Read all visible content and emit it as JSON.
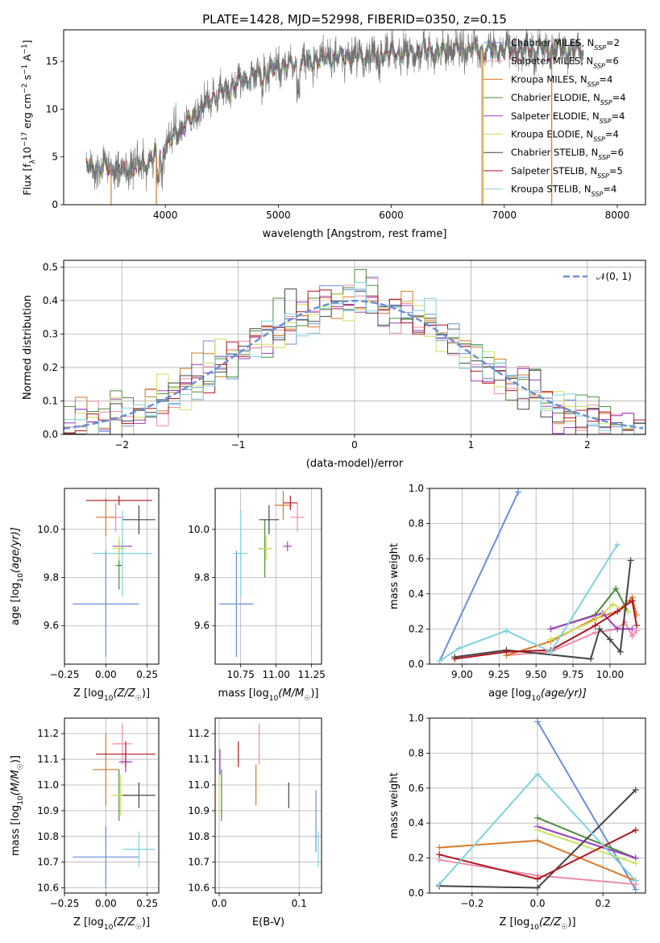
{
  "figure": {
    "title": "PLATE=1428, MJD=52998, FIBERID=0350, z=0.15"
  },
  "colors": {
    "Chabrier MILES": "#6a8fd6",
    "Salpeter MILES": "#f08aa8",
    "Kroupa MILES": "#d97a28",
    "Chabrier ELODIE": "#4c8c3c",
    "Salpeter ELODIE": "#9b3ec0",
    "Kroupa ELODIE": "#cfe05a",
    "Chabrier STELIB": "#444444",
    "Salpeter STELIB": "#b0141e",
    "Kroupa STELIB": "#7fd3de"
  },
  "chart_data": [
    {
      "id": "spectrum",
      "type": "line",
      "xlabel": "wavelength [Angstrom, rest frame]",
      "ylabel": "Flux [f",
      "ylabel_lambda": "λ",
      "ylabel_rest": "10",
      "ylabel_exp": "−17",
      "ylabel_units": " erg cm",
      "ylabel_u1": "−2",
      "ylabel_s": " s",
      "ylabel_u2": "−1",
      "ylabel_a": " A",
      "ylabel_u3": "−1",
      "ylabel_end": "]",
      "xlim": [
        3100,
        8250
      ],
      "ylim": [
        0,
        18.3
      ],
      "xticks": [
        4000,
        5000,
        6000,
        7000,
        8000
      ],
      "yticks": [
        0,
        5,
        10,
        15
      ],
      "legend": [
        {
          "label": "Chabrier MILES, N",
          "sub": "SSP",
          "suffix": "=2",
          "color": "#6a8fd6"
        },
        {
          "label": "Salpeter MILES, N",
          "sub": "SSP",
          "suffix": "=6",
          "color": "#f08aa8"
        },
        {
          "label": "Kroupa MILES, N",
          "sub": "SSP",
          "suffix": "=4",
          "color": "#d97a28"
        },
        {
          "label": "Chabrier ELODIE, N",
          "sub": "SSP",
          "suffix": "=4",
          "color": "#4c8c3c"
        },
        {
          "label": "Salpeter ELODIE, N",
          "sub": "SSP",
          "suffix": "=4",
          "color": "#9b3ec0"
        },
        {
          "label": "Kroupa ELODIE, N",
          "sub": "SSP",
          "suffix": "=4",
          "color": "#cfe05a"
        },
        {
          "label": "Chabrier STELIB, N",
          "sub": "SSP",
          "suffix": "=6",
          "color": "#444444"
        },
        {
          "label": "Salpeter STELIB, N",
          "sub": "SSP",
          "suffix": "=5",
          "color": "#b0141e"
        },
        {
          "label": "Kroupa STELIB, N",
          "sub": "SSP",
          "suffix": "=4",
          "color": "#7fd3de"
        }
      ],
      "continuum_x": [
        3300,
        3450,
        3550,
        3650,
        3750,
        3850,
        3950,
        4050,
        4200,
        4400,
        4600,
        4800,
        5000,
        5200,
        5400,
        5700,
        6000,
        6300,
        6600,
        6900,
        7200,
        7500,
        7700
      ],
      "continuum_y": [
        3.9,
        3.9,
        3.7,
        3.5,
        4.0,
        4.5,
        5.3,
        6.8,
        8.7,
        11.0,
        12.6,
        13.6,
        14.3,
        14.8,
        15.3,
        15.6,
        15.8,
        16.0,
        16.2,
        16.2,
        16.3,
        16.2,
        16.0
      ],
      "drop_lines": [
        {
          "x": 3520,
          "color": "#d97a28"
        },
        {
          "x": 3920,
          "color": "#d97a28"
        },
        {
          "x": 6800,
          "color": "#cfe05a"
        },
        {
          "x": 6810,
          "color": "#d97a28"
        },
        {
          "x": 7420,
          "color": "#d97a28"
        }
      ]
    },
    {
      "id": "residuals",
      "type": "bar",
      "xlabel": "(data-model)/error",
      "ylabel": "Normed distribution",
      "xlim": [
        -2.5,
        2.5
      ],
      "ylim": [
        0,
        0.52
      ],
      "xticks": [
        -2,
        -1,
        0,
        1,
        2
      ],
      "xtick_labels": [
        "−2",
        "−1",
        "0",
        "1",
        "2"
      ],
      "yticks": [
        0.0,
        0.1,
        0.2,
        0.3,
        0.4,
        0.5
      ],
      "ytick_labels": [
        "0.0",
        "0.1",
        "0.2",
        "0.3",
        "0.4",
        "0.5"
      ],
      "bin_width": 0.1,
      "legend": [
        {
          "label": "𝒩(0, 1)",
          "color": "#6a8fd6",
          "dashed": true
        }
      ],
      "gaussian": {
        "mu": 0,
        "sigma": 1
      }
    },
    {
      "id": "age-Z",
      "type": "scatter",
      "xlabel": "Z [log",
      "xlabel_sub": "10",
      "xlabel_rest": "(Z/Z",
      "xlabel_sun": "☉",
      "xlabel_end": ")]",
      "ylabel": "age  [log",
      "ylabel_sub": "10",
      "ylabel_rest": "(age/yr)]",
      "xlim": [
        -0.25,
        0.32
      ],
      "ylim": [
        9.44,
        10.17
      ],
      "xticks": [
        -0.25,
        0.0,
        0.25
      ],
      "xtick_labels": [
        "−0.25",
        "0.00",
        "0.25"
      ],
      "yticks": [
        9.6,
        9.8,
        10.0
      ],
      "ytick_labels": [
        "9.6",
        "9.8",
        "10.0"
      ],
      "points": [
        {
          "model": "Chabrier MILES",
          "x": 0.0,
          "y": 9.69,
          "xerr": 0.2,
          "yerr": 0.22
        },
        {
          "model": "Salpeter MILES",
          "x": 0.06,
          "y": 10.05,
          "xerr": 0.05,
          "yerr": 0.06
        },
        {
          "model": "Kroupa MILES",
          "x": 0.0,
          "y": 10.05,
          "xerr": 0.06,
          "yerr": 0.08
        },
        {
          "model": "Chabrier ELODIE",
          "x": 0.08,
          "y": 9.85,
          "xerr": 0.02,
          "yerr": 0.1
        },
        {
          "model": "Salpeter ELODIE",
          "x": 0.1,
          "y": 9.93,
          "xerr": 0.06,
          "yerr": 0.02
        },
        {
          "model": "Kroupa ELODIE",
          "x": 0.08,
          "y": 9.92,
          "xerr": 0.04,
          "yerr": 0.05
        },
        {
          "model": "Chabrier STELIB",
          "x": 0.2,
          "y": 10.04,
          "xerr": 0.1,
          "yerr": 0.06
        },
        {
          "model": "Salpeter STELIB",
          "x": 0.08,
          "y": 10.12,
          "xerr": 0.2,
          "yerr": 0.02
        },
        {
          "model": "Kroupa STELIB",
          "x": 0.1,
          "y": 9.9,
          "xerr": 0.18,
          "yerr": 0.18
        }
      ]
    },
    {
      "id": "age-mass",
      "type": "scatter",
      "xlabel": "mass [log",
      "xlabel_sub": "10",
      "xlabel_rest": "(M/M",
      "xlabel_sun": "☉",
      "xlabel_end": ")]",
      "ylabel": "",
      "xlim": [
        10.57,
        11.32
      ],
      "ylim": [
        9.44,
        10.17
      ],
      "xticks": [
        10.75,
        11.0,
        11.25
      ],
      "xtick_labels": [
        "10.75",
        "11.00",
        "11.25"
      ],
      "yticks": [
        9.6,
        9.8,
        10.0
      ],
      "ytick_labels": [
        "9.6",
        "9.8",
        "10.0"
      ],
      "points": [
        {
          "model": "Chabrier MILES",
          "x": 10.72,
          "y": 9.69,
          "xerr": 0.12,
          "yerr": 0.22
        },
        {
          "model": "Salpeter MILES",
          "x": 11.15,
          "y": 10.05,
          "xerr": 0.05,
          "yerr": 0.06
        },
        {
          "model": "Kroupa MILES",
          "x": 11.05,
          "y": 10.1,
          "xerr": 0.06,
          "yerr": 0.06
        },
        {
          "model": "Chabrier ELODIE",
          "x": 10.92,
          "y": 9.92,
          "xerr": 0.04,
          "yerr": 0.12
        },
        {
          "model": "Salpeter ELODIE",
          "x": 11.08,
          "y": 9.93,
          "xerr": 0.03,
          "yerr": 0.02
        },
        {
          "model": "Kroupa ELODIE",
          "x": 10.93,
          "y": 9.92,
          "xerr": 0.04,
          "yerr": 0.05
        },
        {
          "model": "Chabrier STELIB",
          "x": 10.95,
          "y": 10.04,
          "xerr": 0.07,
          "yerr": 0.06
        },
        {
          "model": "Salpeter STELIB",
          "x": 11.1,
          "y": 10.11,
          "xerr": 0.05,
          "yerr": 0.03
        },
        {
          "model": "Kroupa STELIB",
          "x": 10.75,
          "y": 9.9,
          "xerr": 0.05,
          "yerr": 0.18
        }
      ]
    },
    {
      "id": "weight-age",
      "type": "line",
      "xlabel": "age  [log",
      "xlabel_sub": "10",
      "xlabel_rest": "(age/yr)]",
      "ylabel": "mass weight",
      "xlim": [
        8.78,
        10.24
      ],
      "ylim": [
        0,
        1.0
      ],
      "xticks": [
        9.0,
        9.25,
        9.5,
        9.75,
        10.0
      ],
      "xtick_labels": [
        "9.00",
        "9.25",
        "9.50",
        "9.75",
        "10.00"
      ],
      "yticks": [
        0,
        0.2,
        0.4,
        0.6,
        0.8,
        1.0
      ],
      "ytick_labels": [
        "0.0",
        "0.2",
        "0.4",
        "0.6",
        "0.8",
        "1.0"
      ],
      "series": [
        {
          "model": "Chabrier MILES",
          "x": [
            8.85,
            9.38
          ],
          "y": [
            0.02,
            0.98
          ]
        },
        {
          "model": "Salpeter MILES",
          "x": [
            9.3,
            9.6,
            9.9,
            10.05,
            10.1,
            10.15,
            10.18
          ],
          "y": [
            0.05,
            0.07,
            0.18,
            0.2,
            0.24,
            0.16,
            0.19
          ]
        },
        {
          "model": "Kroupa MILES",
          "x": [
            9.3,
            9.6,
            9.9,
            10.05,
            10.15,
            10.18
          ],
          "y": [
            0.05,
            0.13,
            0.26,
            0.3,
            0.38,
            0.28
          ]
        },
        {
          "model": "Chabrier ELODIE",
          "x": [
            9.6,
            9.9,
            10.04,
            10.12
          ],
          "y": [
            0.2,
            0.28,
            0.43,
            0.3
          ]
        },
        {
          "model": "Salpeter ELODIE",
          "x": [
            9.6,
            9.95,
            10.05,
            10.15
          ],
          "y": [
            0.2,
            0.29,
            0.2,
            0.2
          ]
        },
        {
          "model": "Kroupa ELODIE",
          "x": [
            9.6,
            9.9,
            10.02,
            10.12
          ],
          "y": [
            0.14,
            0.25,
            0.34,
            0.3
          ]
        },
        {
          "model": "Chabrier STELIB",
          "x": [
            8.95,
            9.3,
            9.87,
            9.93,
            10.0,
            10.07,
            10.14
          ],
          "y": [
            0.04,
            0.08,
            0.03,
            0.2,
            0.14,
            0.07,
            0.59
          ]
        },
        {
          "model": "Salpeter STELIB",
          "x": [
            8.95,
            9.3,
            9.6,
            9.9,
            10.05,
            10.15,
            10.18
          ],
          "y": [
            0.03,
            0.07,
            0.08,
            0.22,
            0.3,
            0.36,
            0.22
          ]
        },
        {
          "model": "Kroupa STELIB",
          "x": [
            8.85,
            8.98,
            9.3,
            9.6,
            10.05
          ],
          "y": [
            0.02,
            0.09,
            0.19,
            0.07,
            0.68
          ]
        }
      ]
    },
    {
      "id": "mass-Z",
      "type": "scatter",
      "xlabel": "Z [log",
      "xlabel_sub": "10",
      "xlabel_rest": "(Z/Z",
      "xlabel_sun": "☉",
      "xlabel_end": ")]",
      "ylabel": "mass [log",
      "ylabel_sub": "10",
      "ylabel_rest": "(M/M",
      "ylabel_sun": "☉",
      "ylabel_end": ")]",
      "xlim": [
        -0.25,
        0.32
      ],
      "ylim": [
        10.58,
        11.26
      ],
      "xticks": [
        -0.25,
        0.0,
        0.25
      ],
      "xtick_labels": [
        "−0.25",
        "0.00",
        "0.25"
      ],
      "yticks": [
        10.6,
        10.7,
        10.8,
        10.9,
        11.0,
        11.1,
        11.2
      ],
      "ytick_labels": [
        "10.6",
        "10.7",
        "10.8",
        "10.9",
        "11.0",
        "11.1",
        "11.2"
      ],
      "points": [
        {
          "model": "Chabrier MILES",
          "x": 0.0,
          "y": 10.72,
          "xerr": 0.2,
          "yerr": 0.12
        },
        {
          "model": "Salpeter MILES",
          "x": 0.1,
          "y": 11.16,
          "xerr": 0.06,
          "yerr": 0.08
        },
        {
          "model": "Kroupa MILES",
          "x": 0.0,
          "y": 11.06,
          "xerr": 0.08,
          "yerr": 0.14
        },
        {
          "model": "Chabrier ELODIE",
          "x": 0.08,
          "y": 10.96,
          "xerr": 0.02,
          "yerr": 0.1
        },
        {
          "model": "Salpeter ELODIE",
          "x": 0.12,
          "y": 11.09,
          "xerr": 0.04,
          "yerr": 0.04
        },
        {
          "model": "Kroupa ELODIE",
          "x": 0.09,
          "y": 10.96,
          "xerr": 0.06,
          "yerr": 0.08
        },
        {
          "model": "Chabrier STELIB",
          "x": 0.2,
          "y": 10.96,
          "xerr": 0.1,
          "yerr": 0.05
        },
        {
          "model": "Salpeter STELIB",
          "x": 0.12,
          "y": 11.12,
          "xerr": 0.18,
          "yerr": 0.05
        },
        {
          "model": "Kroupa STELIB",
          "x": 0.2,
          "y": 10.75,
          "xerr": 0.1,
          "yerr": 0.07
        }
      ]
    },
    {
      "id": "mass-EBV",
      "type": "scatter",
      "xlabel": "E(B-V)",
      "ylabel": "",
      "xlim": [
        -0.005,
        0.128
      ],
      "ylim": [
        10.58,
        11.26
      ],
      "xticks": [
        0.0,
        0.1
      ],
      "xtick_labels": [
        "0.0",
        "0.1"
      ],
      "yticks": [
        10.6,
        10.7,
        10.8,
        10.9,
        11.0,
        11.1,
        11.2
      ],
      "ytick_labels": [
        "10.6",
        "10.7",
        "10.8",
        "10.9",
        "11.0",
        "11.1",
        "11.2"
      ],
      "points": [
        {
          "model": "Chabrier MILES",
          "x": 0.121,
          "y": 10.86,
          "xerr": 0,
          "yerr": 0.12
        },
        {
          "model": "Salpeter MILES",
          "x": 0.05,
          "y": 11.16,
          "xerr": 0,
          "yerr": 0.08
        },
        {
          "model": "Kroupa MILES",
          "x": 0.046,
          "y": 11.0,
          "xerr": 0,
          "yerr": 0.08
        },
        {
          "model": "Chabrier ELODIE",
          "x": 0.003,
          "y": 10.96,
          "xerr": 0,
          "yerr": 0.1
        },
        {
          "model": "Salpeter ELODIE",
          "x": 0.001,
          "y": 11.09,
          "xerr": 0,
          "yerr": 0.05
        },
        {
          "model": "Kroupa ELODIE",
          "x": 0.0,
          "y": 10.96,
          "xerr": 0,
          "yerr": 0.08
        },
        {
          "model": "Chabrier STELIB",
          "x": 0.087,
          "y": 10.96,
          "xerr": 0,
          "yerr": 0.05
        },
        {
          "model": "Salpeter STELIB",
          "x": 0.024,
          "y": 11.12,
          "xerr": 0,
          "yerr": 0.05
        },
        {
          "model": "Kroupa STELIB",
          "x": 0.124,
          "y": 10.75,
          "xerr": 0,
          "yerr": 0.07
        }
      ]
    },
    {
      "id": "weight-Z",
      "type": "line",
      "xlabel": "Z [log",
      "xlabel_sub": "10",
      "xlabel_rest": "(Z/Z",
      "xlabel_sun": "☉",
      "xlabel_end": ")]",
      "ylabel": "mass weight",
      "xlim": [
        -0.33,
        0.33
      ],
      "ylim": [
        0,
        1.0
      ],
      "xticks": [
        -0.2,
        0.0,
        0.2
      ],
      "xtick_labels": [
        "−0.2",
        "0.0",
        "0.2"
      ],
      "yticks": [
        0,
        0.2,
        0.4,
        0.6,
        0.8,
        1.0
      ],
      "ytick_labels": [
        "0.0",
        "0.2",
        "0.4",
        "0.6",
        "0.8",
        "1.0"
      ],
      "series": [
        {
          "model": "Chabrier MILES",
          "x": [
            0.0,
            0.3
          ],
          "y": [
            0.98,
            0.02
          ]
        },
        {
          "model": "Salpeter MILES",
          "x": [
            -0.3,
            0.0,
            0.3
          ],
          "y": [
            0.19,
            0.1,
            0.05
          ]
        },
        {
          "model": "Kroupa MILES",
          "x": [
            -0.3,
            0.0,
            0.3
          ],
          "y": [
            0.26,
            0.3,
            0.07
          ]
        },
        {
          "model": "Chabrier ELODIE",
          "x": [
            0.0,
            0.3
          ],
          "y": [
            0.43,
            0.2
          ]
        },
        {
          "model": "Salpeter ELODIE",
          "x": [
            0.0,
            0.3
          ],
          "y": [
            0.38,
            0.2
          ]
        },
        {
          "model": "Kroupa ELODIE",
          "x": [
            0.0,
            0.3
          ],
          "y": [
            0.36,
            0.17
          ]
        },
        {
          "model": "Chabrier STELIB",
          "x": [
            -0.3,
            0.0,
            0.3
          ],
          "y": [
            0.04,
            0.03,
            0.59
          ]
        },
        {
          "model": "Salpeter STELIB",
          "x": [
            -0.3,
            0.0,
            0.3
          ],
          "y": [
            0.22,
            0.08,
            0.36
          ]
        },
        {
          "model": "Kroupa STELIB",
          "x": [
            -0.3,
            0.0,
            0.3
          ],
          "y": [
            0.05,
            0.68,
            0.07
          ]
        }
      ]
    }
  ]
}
